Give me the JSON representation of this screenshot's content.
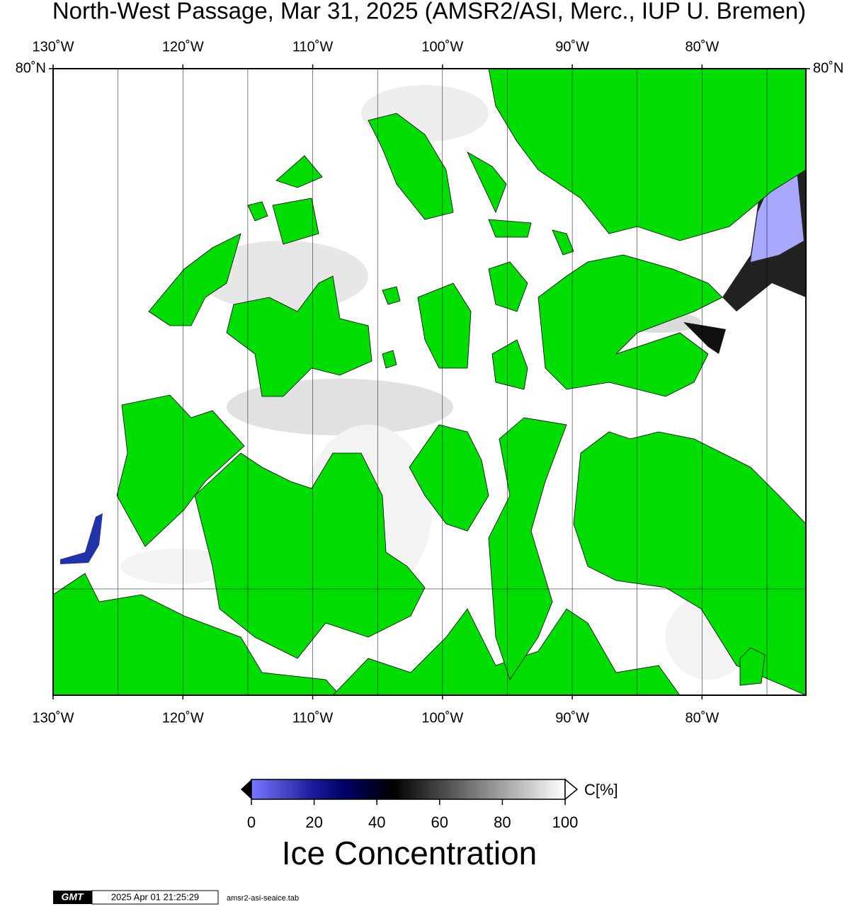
{
  "chart_data": {
    "type": "map",
    "title": "North-West Passage, Mar 31, 2025 (AMSR2/ASI, Merc., IUP U. Bremen)",
    "xlim": [
      -130,
      -72
    ],
    "ylim": [
      67,
      80
    ],
    "xticks": [
      {
        "value": -130,
        "label": "130˚W"
      },
      {
        "value": -120,
        "label": "120˚W"
      },
      {
        "value": -110,
        "label": "110˚W"
      },
      {
        "value": -100,
        "label": "100˚W"
      },
      {
        "value": -90,
        "label": "90˚W"
      },
      {
        "value": -80,
        "label": "80˚W"
      }
    ],
    "xgrid": [
      -125,
      -115,
      -105,
      -95,
      -85,
      -75
    ],
    "yticks": [
      {
        "value": 80,
        "label": "80˚N"
      }
    ],
    "ygrid": [
      70
    ],
    "land_color": "#00dd00",
    "colorbar": {
      "unit": "C[%]",
      "title": "Ice Concentration",
      "lim": [
        0,
        100
      ],
      "ticks": [
        0,
        20,
        40,
        60,
        80,
        100
      ],
      "stops": [
        {
          "value": 0,
          "color": "#7777ff"
        },
        {
          "value": 20,
          "color": "#1a1a99"
        },
        {
          "value": 30,
          "color": "#000066"
        },
        {
          "value": 45,
          "color": "#000000"
        },
        {
          "value": 100,
          "color": "#ffffff"
        }
      ]
    },
    "footer": {
      "logo": "GMT",
      "timestamp": "2025 Apr 01 21:25:29",
      "file": "amsr2-asi-seaice.tab"
    }
  }
}
